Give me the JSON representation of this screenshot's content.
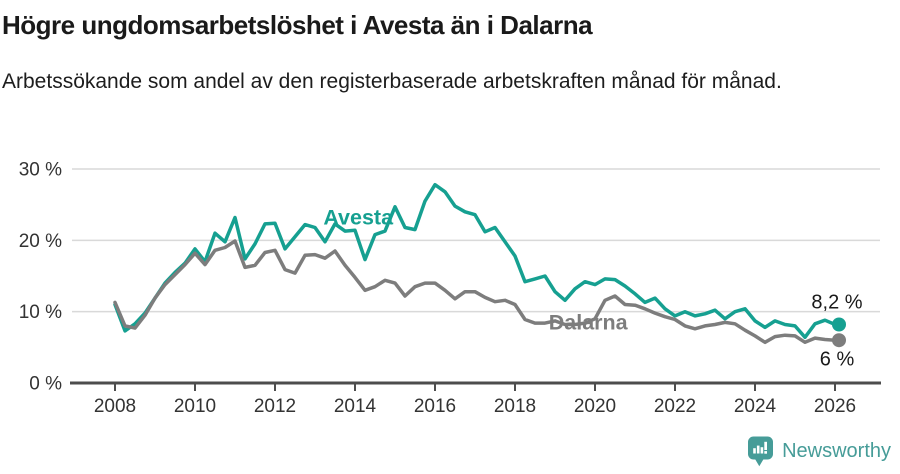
{
  "header": {
    "title": "Högre ungdomsarbetslöshet i Avesta än i Dalarna",
    "subtitle": "Arbetssökande som andel av den registerbaserade arbetskraften månad för månad."
  },
  "footer": {
    "brand": "Newsworthy",
    "brand_color": "#469c98",
    "logo_icon": "speech-bubble-bar-chart-icon"
  },
  "chart_data": {
    "type": "line",
    "title": "Högre ungdomsarbetslöshet i Avesta än i Dalarna",
    "xlabel": "",
    "ylabel": "",
    "x_start": 2008.0,
    "x_step": 0.25,
    "xlim": [
      2006.93,
      2027.13
    ],
    "ylim": [
      0,
      30
    ],
    "grid": true,
    "x_ticks": [
      2008,
      2010,
      2012,
      2014,
      2016,
      2018,
      2020,
      2022,
      2024,
      2026
    ],
    "x_tick_labels": [
      "2008",
      "2010",
      "2012",
      "2014",
      "2016",
      "2018",
      "2020",
      "2022",
      "2024",
      "2026"
    ],
    "y_ticks": [
      0,
      10,
      20,
      30
    ],
    "y_tick_labels": [
      "0 %",
      "10 %",
      "20 %",
      "30 %"
    ],
    "colors": {
      "axis": "#4d4d4d",
      "grid": "#d9d9d9",
      "tick_text": "#333333",
      "end_label_text": "#1a1a1a"
    },
    "series": [
      {
        "name": "Avesta",
        "color": "#16a091",
        "label_pos": {
          "x": 2014.08,
          "y": 23.3
        },
        "end_label": {
          "text": "8,2 %",
          "x": 2026.05,
          "y": 11.4
        },
        "end_value": 8.2,
        "values": [
          11.0,
          7.3,
          8.3,
          9.8,
          11.9,
          14.0,
          15.5,
          16.8,
          18.8,
          17.0,
          21.0,
          19.8,
          23.2,
          17.4,
          19.5,
          22.3,
          22.4,
          18.8,
          20.5,
          22.2,
          21.8,
          19.8,
          22.3,
          21.3,
          21.4,
          17.3,
          20.8,
          21.3,
          24.7,
          21.8,
          21.5,
          25.5,
          27.8,
          26.8,
          24.8,
          24.0,
          23.6,
          21.2,
          21.8,
          19.8,
          17.8,
          14.2,
          14.6,
          15.0,
          12.8,
          11.6,
          13.2,
          14.2,
          13.8,
          14.6,
          14.5,
          13.6,
          12.5,
          11.3,
          11.9,
          10.4,
          9.4,
          10.0,
          9.4,
          9.7,
          10.2,
          9.0,
          10.0,
          10.4,
          8.7,
          7.8,
          8.7,
          8.2,
          8.0,
          6.4,
          8.3,
          8.8,
          8.2
        ]
      },
      {
        "name": "Dalarna",
        "color": "#7d7d7d",
        "label_pos": {
          "x": 2019.83,
          "y": 8.55
        },
        "end_label": {
          "text": "6 %",
          "x": 2026.05,
          "y": 3.4
        },
        "end_value": 6.0,
        "values": [
          11.3,
          8.0,
          7.7,
          9.5,
          11.9,
          13.8,
          15.2,
          16.6,
          18.2,
          16.6,
          18.6,
          19.0,
          19.9,
          16.2,
          16.5,
          18.3,
          18.6,
          15.9,
          15.4,
          17.9,
          18.0,
          17.5,
          18.5,
          16.5,
          14.8,
          13.0,
          13.5,
          14.4,
          14.0,
          12.2,
          13.5,
          14.0,
          14.0,
          13.0,
          11.8,
          12.8,
          12.8,
          12.0,
          11.4,
          11.6,
          11.0,
          8.9,
          8.4,
          8.4,
          8.7,
          8.2,
          8.2,
          8.4,
          9.0,
          11.6,
          12.2,
          11.0,
          10.9,
          10.4,
          9.8,
          9.3,
          8.9,
          8.0,
          7.6,
          8.0,
          8.2,
          8.5,
          8.3,
          7.4,
          6.6,
          5.7,
          6.5,
          6.7,
          6.6,
          5.7,
          6.3,
          6.1,
          6.0
        ]
      }
    ]
  }
}
